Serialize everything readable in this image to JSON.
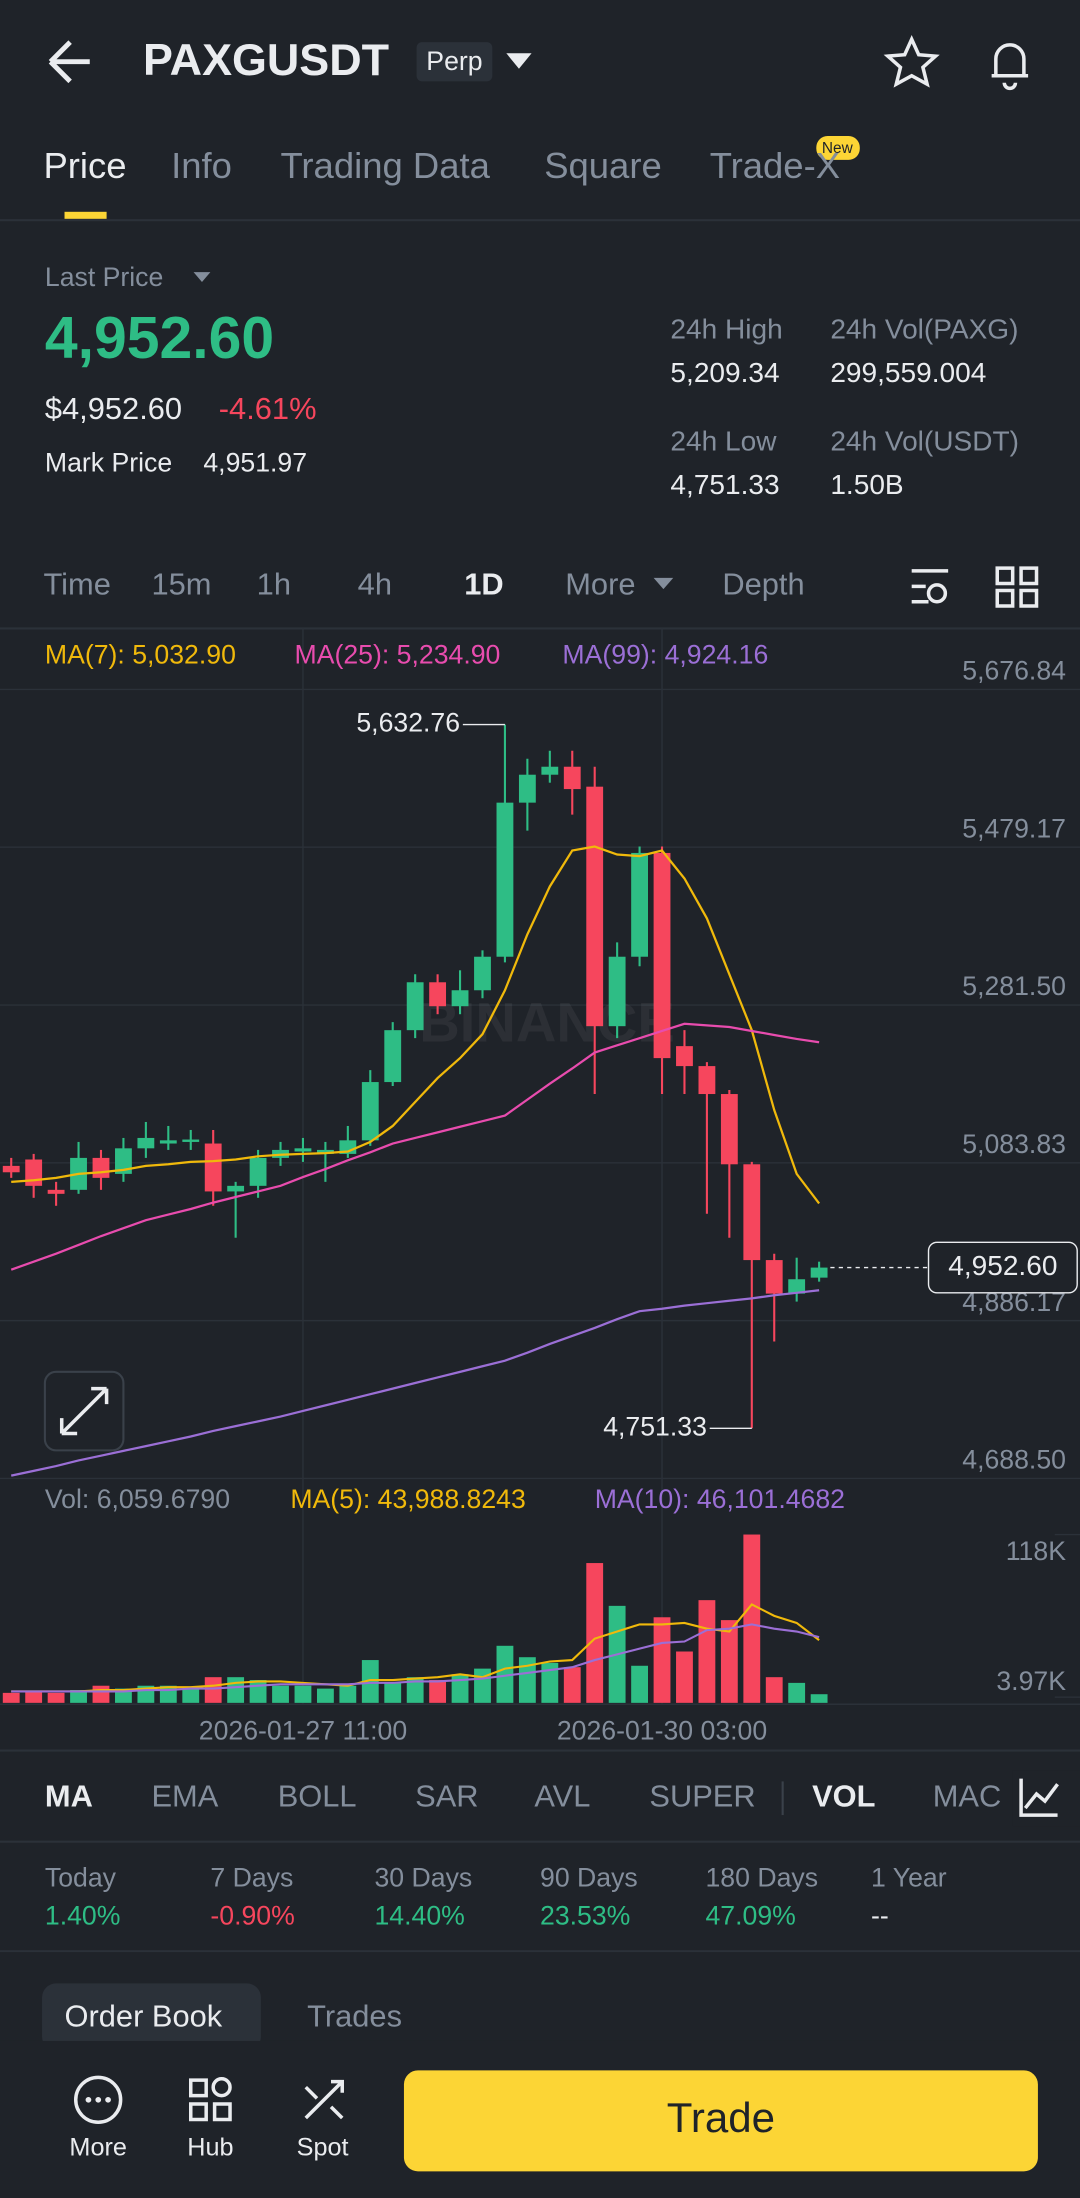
{
  "header": {
    "symbol": "PAXGUSDT",
    "badge": "Perp"
  },
  "tabs": [
    "Price",
    "Info",
    "Trading Data",
    "Square",
    "Trade-X"
  ],
  "new_badge": "New",
  "price": {
    "label": "Last Price",
    "last": "4,952.60",
    "usd": "$4,952.60",
    "change": "-4.61%",
    "mark_label": "Mark Price",
    "mark": "4,951.97",
    "stats": [
      {
        "label": "24h High",
        "value": "5,209.34"
      },
      {
        "label": "24h Vol(PAXG)",
        "value": "299,559.004"
      },
      {
        "label": "24h Low",
        "value": "4,751.33"
      },
      {
        "label": "24h Vol(USDT)",
        "value": "1.50B"
      }
    ]
  },
  "intervals": [
    "Time",
    "15m",
    "1h",
    "4h",
    "1D",
    "More",
    "Depth"
  ],
  "chart_data": {
    "type": "candlestick",
    "watermark": "BINANCE",
    "legend": [
      {
        "label": "MA(7): 5,032.90",
        "color": "#f0b90b"
      },
      {
        "label": "MA(25): 5,234.90",
        "color": "#e84cae"
      },
      {
        "label": "MA(99): 4,924.16",
        "color": "#9b6fd6"
      }
    ],
    "up_color": "#2ebd85",
    "down_color": "#f6465d",
    "ylim": [
      4688.5,
      5676.84
    ],
    "yticks": [
      {
        "value": 5676.84,
        "label": "5,676.84"
      },
      {
        "value": 5479.17,
        "label": "5,479.17"
      },
      {
        "value": 5281.5,
        "label": "5,281.50"
      },
      {
        "value": 5083.83,
        "label": "5,083.83"
      },
      {
        "value": 4886.17,
        "label": "4,886.17"
      },
      {
        "value": 4688.5,
        "label": "4,688.50"
      }
    ],
    "xticks": [
      {
        "value": 13,
        "label": "2026-01-27 11:00"
      },
      {
        "value": 29,
        "label": "2026-01-30 03:00"
      }
    ],
    "open": [
      5080,
      5088,
      5050,
      5050,
      5090,
      5070,
      5102,
      5108,
      5110,
      5108,
      5048,
      5055,
      5090,
      5098,
      5095,
      5095,
      5112,
      5185,
      5250,
      5310,
      5280,
      5300,
      5342,
      5535,
      5570,
      5580,
      5555,
      5255,
      5342,
      5472,
      5230,
      5205,
      5170,
      5082,
      4962,
      4920,
      4940
    ],
    "high": [
      5090,
      5095,
      5060,
      5110,
      5100,
      5115,
      5135,
      5130,
      5125,
      5125,
      5060,
      5100,
      5110,
      5115,
      5110,
      5130,
      5200,
      5260,
      5320,
      5320,
      5325,
      5350,
      5632.76,
      5590,
      5600,
      5600,
      5580,
      5360,
      5480,
      5480,
      5250,
      5210,
      5175,
      5085,
      4970,
      4965,
      4960
    ],
    "low": [
      5065,
      5040,
      5030,
      5045,
      5050,
      5060,
      5090,
      5100,
      5100,
      5030,
      4990,
      5040,
      5080,
      5085,
      5060,
      5090,
      5105,
      5180,
      5240,
      5270,
      5270,
      5290,
      5335,
      5500,
      5560,
      5520,
      5170,
      5240,
      5330,
      5170,
      5170,
      5020,
      4990,
      4751.33,
      4860,
      4910,
      4935
    ],
    "close": [
      5072,
      5055,
      5045,
      5090,
      5065,
      5102,
      5115,
      5112,
      5113,
      5048,
      5055,
      5090,
      5100,
      5102,
      5100,
      5112,
      5185,
      5250,
      5310,
      5280,
      5300,
      5342,
      5535,
      5570,
      5580,
      5552,
      5255,
      5342,
      5472,
      5215,
      5205,
      5170,
      5082,
      4962,
      4920,
      4938,
      4952.6
    ],
    "ma_lines": [
      {
        "values": [
          5060,
          5062,
          5065,
          5070,
          5072,
          5075,
          5080,
          5082,
          5085,
          5086,
          5088,
          5092,
          5094,
          5095,
          5096,
          5098,
          5110,
          5130,
          5160,
          5190,
          5215,
          5245,
          5300,
          5370,
          5430,
          5475,
          5480,
          5470,
          5468,
          5475,
          5440,
          5390,
          5320,
          5250,
          5150,
          5070,
          5032.9
        ]
      },
      {
        "values": [
          4950,
          4960,
          4970,
          4981,
          4992,
          5002,
          5012,
          5019,
          5026,
          5034,
          5041,
          5048,
          5055,
          5066,
          5076,
          5087,
          5097,
          5108,
          5115,
          5122,
          5129,
          5136,
          5143,
          5163,
          5183,
          5202,
          5222,
          5231,
          5240,
          5249,
          5258,
          5256,
          5254,
          5249,
          5244,
          5239,
          5234.9
        ]
      },
      {
        "values": [
          4692,
          4698,
          4704,
          4711,
          4717,
          4723,
          4729,
          4735,
          4741,
          4748,
          4754,
          4760,
          4766,
          4773,
          4780,
          4787,
          4794,
          4801,
          4808,
          4815,
          4822,
          4829,
          4836,
          4846,
          4857,
          4867,
          4877,
          4888,
          4898,
          4901,
          4905,
          4908,
          4911,
          4914,
          4918,
          4921,
          4924.16
        ]
      }
    ],
    "last_price": {
      "value": 4952.6,
      "label": "4,952.60"
    },
    "high_mark": {
      "index": 22,
      "value": 5632.76,
      "label": "5,632.76"
    },
    "low_mark": {
      "index": 33,
      "value": 4751.33,
      "label": "4,751.33"
    },
    "volume": {
      "legend": [
        {
          "label": "Vol: 6,059.6790",
          "color": "#848e9c"
        },
        {
          "label": "MA(5): 43,988.8243",
          "color": "#f0b90b"
        },
        {
          "label": "MA(10): 46,101.4682",
          "color": "#9b6fd6"
        }
      ],
      "ylim": [
        0,
        118000
      ],
      "yticks": [
        {
          "value": 118000,
          "label": "118K"
        },
        {
          "value": 3970,
          "label": "3.97K"
        }
      ],
      "values": [
        7000,
        8000,
        7000,
        9000,
        12000,
        10000,
        12000,
        12000,
        10000,
        18000,
        18000,
        16000,
        12000,
        12000,
        10000,
        12000,
        30000,
        14000,
        18000,
        16000,
        20000,
        24000,
        40000,
        32000,
        28000,
        25000,
        98000,
        68000,
        26000,
        60000,
        36000,
        72000,
        58000,
        118000,
        18000,
        14000,
        6059.679
      ],
      "ma_lines": [
        {
          "values": [
            8000,
            8000,
            8000,
            8000,
            9000,
            9000,
            10000,
            11000,
            11000,
            12000,
            14000,
            15000,
            15000,
            14000,
            13000,
            12000,
            16000,
            16000,
            17000,
            18000,
            20000,
            18000,
            24000,
            26000,
            29000,
            30000,
            45000,
            50000,
            55000,
            55000,
            56000,
            52000,
            50000,
            69000,
            61000,
            56000,
            43988.8243
          ]
        },
        {
          "values": [
            8000,
            8000,
            8000,
            8000,
            8000,
            8000,
            9000,
            9000,
            10000,
            10000,
            11000,
            12000,
            13000,
            13000,
            13000,
            13000,
            14000,
            14000,
            15000,
            15000,
            16000,
            17000,
            19000,
            21000,
            23000,
            25000,
            30000,
            34000,
            38000,
            42000,
            43000,
            51000,
            52000,
            55000,
            52000,
            50000,
            46101.4682
          ]
        }
      ]
    }
  },
  "indicators": [
    "MA",
    "EMA",
    "BOLL",
    "SAR",
    "AVL",
    "SUPER",
    "VOL",
    "MAC"
  ],
  "performance": [
    {
      "label": "Today",
      "value": "1.40%",
      "color": "#2ebd85"
    },
    {
      "label": "7 Days",
      "value": "-0.90%",
      "color": "#f6465d"
    },
    {
      "label": "30 Days",
      "value": "14.40%",
      "color": "#2ebd85"
    },
    {
      "label": "90 Days",
      "value": "23.53%",
      "color": "#2ebd85"
    },
    {
      "label": "180 Days",
      "value": "47.09%",
      "color": "#2ebd85"
    },
    {
      "label": "1 Year",
      "value": "--",
      "color": "#eaecef"
    }
  ],
  "book_tabs": [
    "Order Book",
    "Trades"
  ],
  "nav": [
    "More",
    "Hub",
    "Spot"
  ],
  "trade_button": "Trade"
}
